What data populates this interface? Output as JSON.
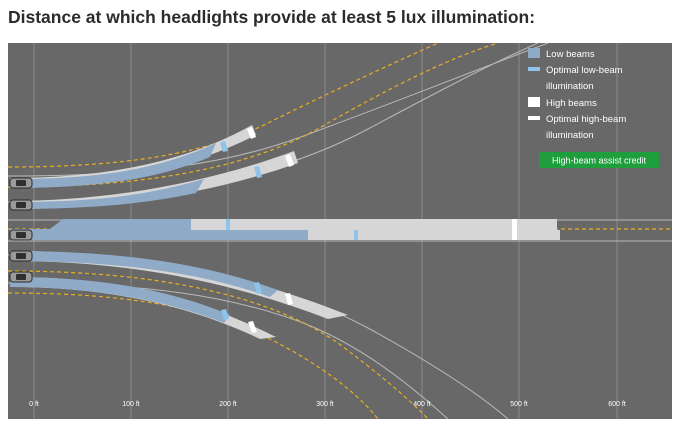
{
  "title": "Distance at which headlights provide at least 5 lux illumination:",
  "legend": {
    "low_beams": "Low beams",
    "optimal_low_line1": "Optimal low-beam",
    "optimal_low_line2": "illumination",
    "high_beams": "High beams",
    "optimal_high_line1": "Optimal high-beam",
    "optimal_high_line2": "illumination"
  },
  "credit_badge": "High-beam assist credit",
  "axis": {
    "unit": "ft",
    "ticks": [
      {
        "value": 0,
        "label": "0 ft"
      },
      {
        "value": 100,
        "label": "100 ft"
      },
      {
        "value": 200,
        "label": "200 ft"
      },
      {
        "value": 300,
        "label": "300 ft"
      },
      {
        "value": 400,
        "label": "400 ft"
      },
      {
        "value": 500,
        "label": "500 ft"
      },
      {
        "value": 600,
        "label": "600 ft"
      }
    ]
  },
  "colors": {
    "background": "#686868",
    "low_beam": "#8fabc8",
    "optimal_low": "#8ec3ea",
    "high_beam": "#d6d6d6",
    "optimal_high": "#ffffff",
    "lane_line": "#e8b020",
    "credit_badge": "#1f9e3e"
  }
}
